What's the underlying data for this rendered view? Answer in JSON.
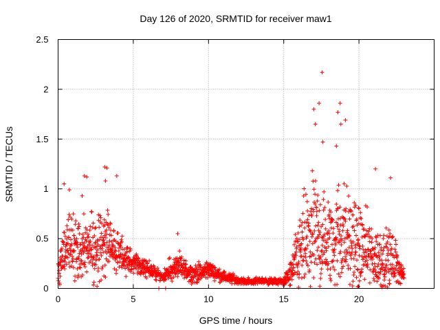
{
  "chart_data": {
    "type": "scatter",
    "title": "Day 126 of 2020, SRMTID for receiver maw1",
    "xlabel": "GPS time / hours",
    "ylabel": "SRMTID / TECUs",
    "xlim": [
      0,
      25
    ],
    "ylim": [
      0,
      2.5
    ],
    "xticks": [
      0,
      5,
      10,
      15,
      20
    ],
    "xtick_labels": [
      "0",
      "5",
      "10",
      "15",
      "20"
    ],
    "yticks": [
      0,
      0.5,
      1,
      1.5,
      2,
      2.5
    ],
    "ytick_labels": [
      "0",
      "0.5",
      "1",
      "1.5",
      "2",
      "2.5"
    ],
    "grid": true,
    "marker": "+",
    "color": "#ff0000",
    "series": [
      {
        "name": "SRMTID",
        "envelope_x": [
          0,
          0.5,
          1,
          1.5,
          2,
          2.5,
          3,
          3.5,
          4,
          4.5,
          5,
          5.5,
          6,
          6.5,
          7,
          7.5,
          8,
          8.5,
          9,
          9.5,
          10,
          10.5,
          11,
          11.5,
          12,
          12.5,
          13,
          13.5,
          14,
          14.5,
          15,
          15.5,
          16,
          16.5,
          17,
          17.5,
          18,
          18.5,
          19,
          19.5,
          20,
          20.5,
          21,
          21.5,
          22,
          22.5,
          23
        ],
        "typical_y": [
          0.15,
          0.45,
          0.45,
          0.4,
          0.4,
          0.4,
          0.5,
          0.45,
          0.35,
          0.3,
          0.25,
          0.22,
          0.2,
          0.15,
          0.12,
          0.18,
          0.22,
          0.18,
          0.15,
          0.15,
          0.2,
          0.15,
          0.12,
          0.1,
          0.08,
          0.07,
          0.07,
          0.08,
          0.07,
          0.07,
          0.07,
          0.15,
          0.35,
          0.45,
          0.55,
          0.5,
          0.45,
          0.55,
          0.55,
          0.45,
          0.4,
          0.4,
          0.3,
          0.3,
          0.3,
          0.25,
          0.12
        ],
        "spread_y": [
          0.15,
          0.3,
          0.3,
          0.3,
          0.3,
          0.3,
          0.35,
          0.3,
          0.2,
          0.15,
          0.12,
          0.1,
          0.08,
          0.06,
          0.04,
          0.12,
          0.12,
          0.1,
          0.08,
          0.1,
          0.08,
          0.06,
          0.05,
          0.05,
          0.03,
          0.03,
          0.03,
          0.03,
          0.03,
          0.03,
          0.03,
          0.15,
          0.35,
          0.5,
          0.55,
          0.5,
          0.45,
          0.55,
          0.5,
          0.45,
          0.4,
          0.35,
          0.3,
          0.3,
          0.3,
          0.2,
          0.06
        ],
        "notable_points": [
          {
            "x": 0.4,
            "y": 1.05
          },
          {
            "x": 0.75,
            "y": 0.99
          },
          {
            "x": 1.6,
            "y": 0.93
          },
          {
            "x": 1.75,
            "y": 1.13
          },
          {
            "x": 1.9,
            "y": 1.12
          },
          {
            "x": 3.1,
            "y": 1.22
          },
          {
            "x": 3.25,
            "y": 1.21
          },
          {
            "x": 3.15,
            "y": 1.08
          },
          {
            "x": 3.9,
            "y": 1.13
          },
          {
            "x": 7.95,
            "y": 0.55
          },
          {
            "x": 17.0,
            "y": 1.8
          },
          {
            "x": 17.1,
            "y": 1.65
          },
          {
            "x": 17.35,
            "y": 1.86
          },
          {
            "x": 17.55,
            "y": 2.17
          },
          {
            "x": 17.6,
            "y": 1.47
          },
          {
            "x": 18.6,
            "y": 1.77
          },
          {
            "x": 18.75,
            "y": 1.86
          },
          {
            "x": 18.8,
            "y": 1.65
          },
          {
            "x": 19.1,
            "y": 1.69
          },
          {
            "x": 18.5,
            "y": 1.43
          },
          {
            "x": 21.1,
            "y": 1.2
          },
          {
            "x": 22.1,
            "y": 1.11
          },
          {
            "x": 6.7,
            "y": 0.0
          },
          {
            "x": 7.15,
            "y": 0.0
          },
          {
            "x": 19.95,
            "y": 0.02
          }
        ]
      }
    ]
  }
}
